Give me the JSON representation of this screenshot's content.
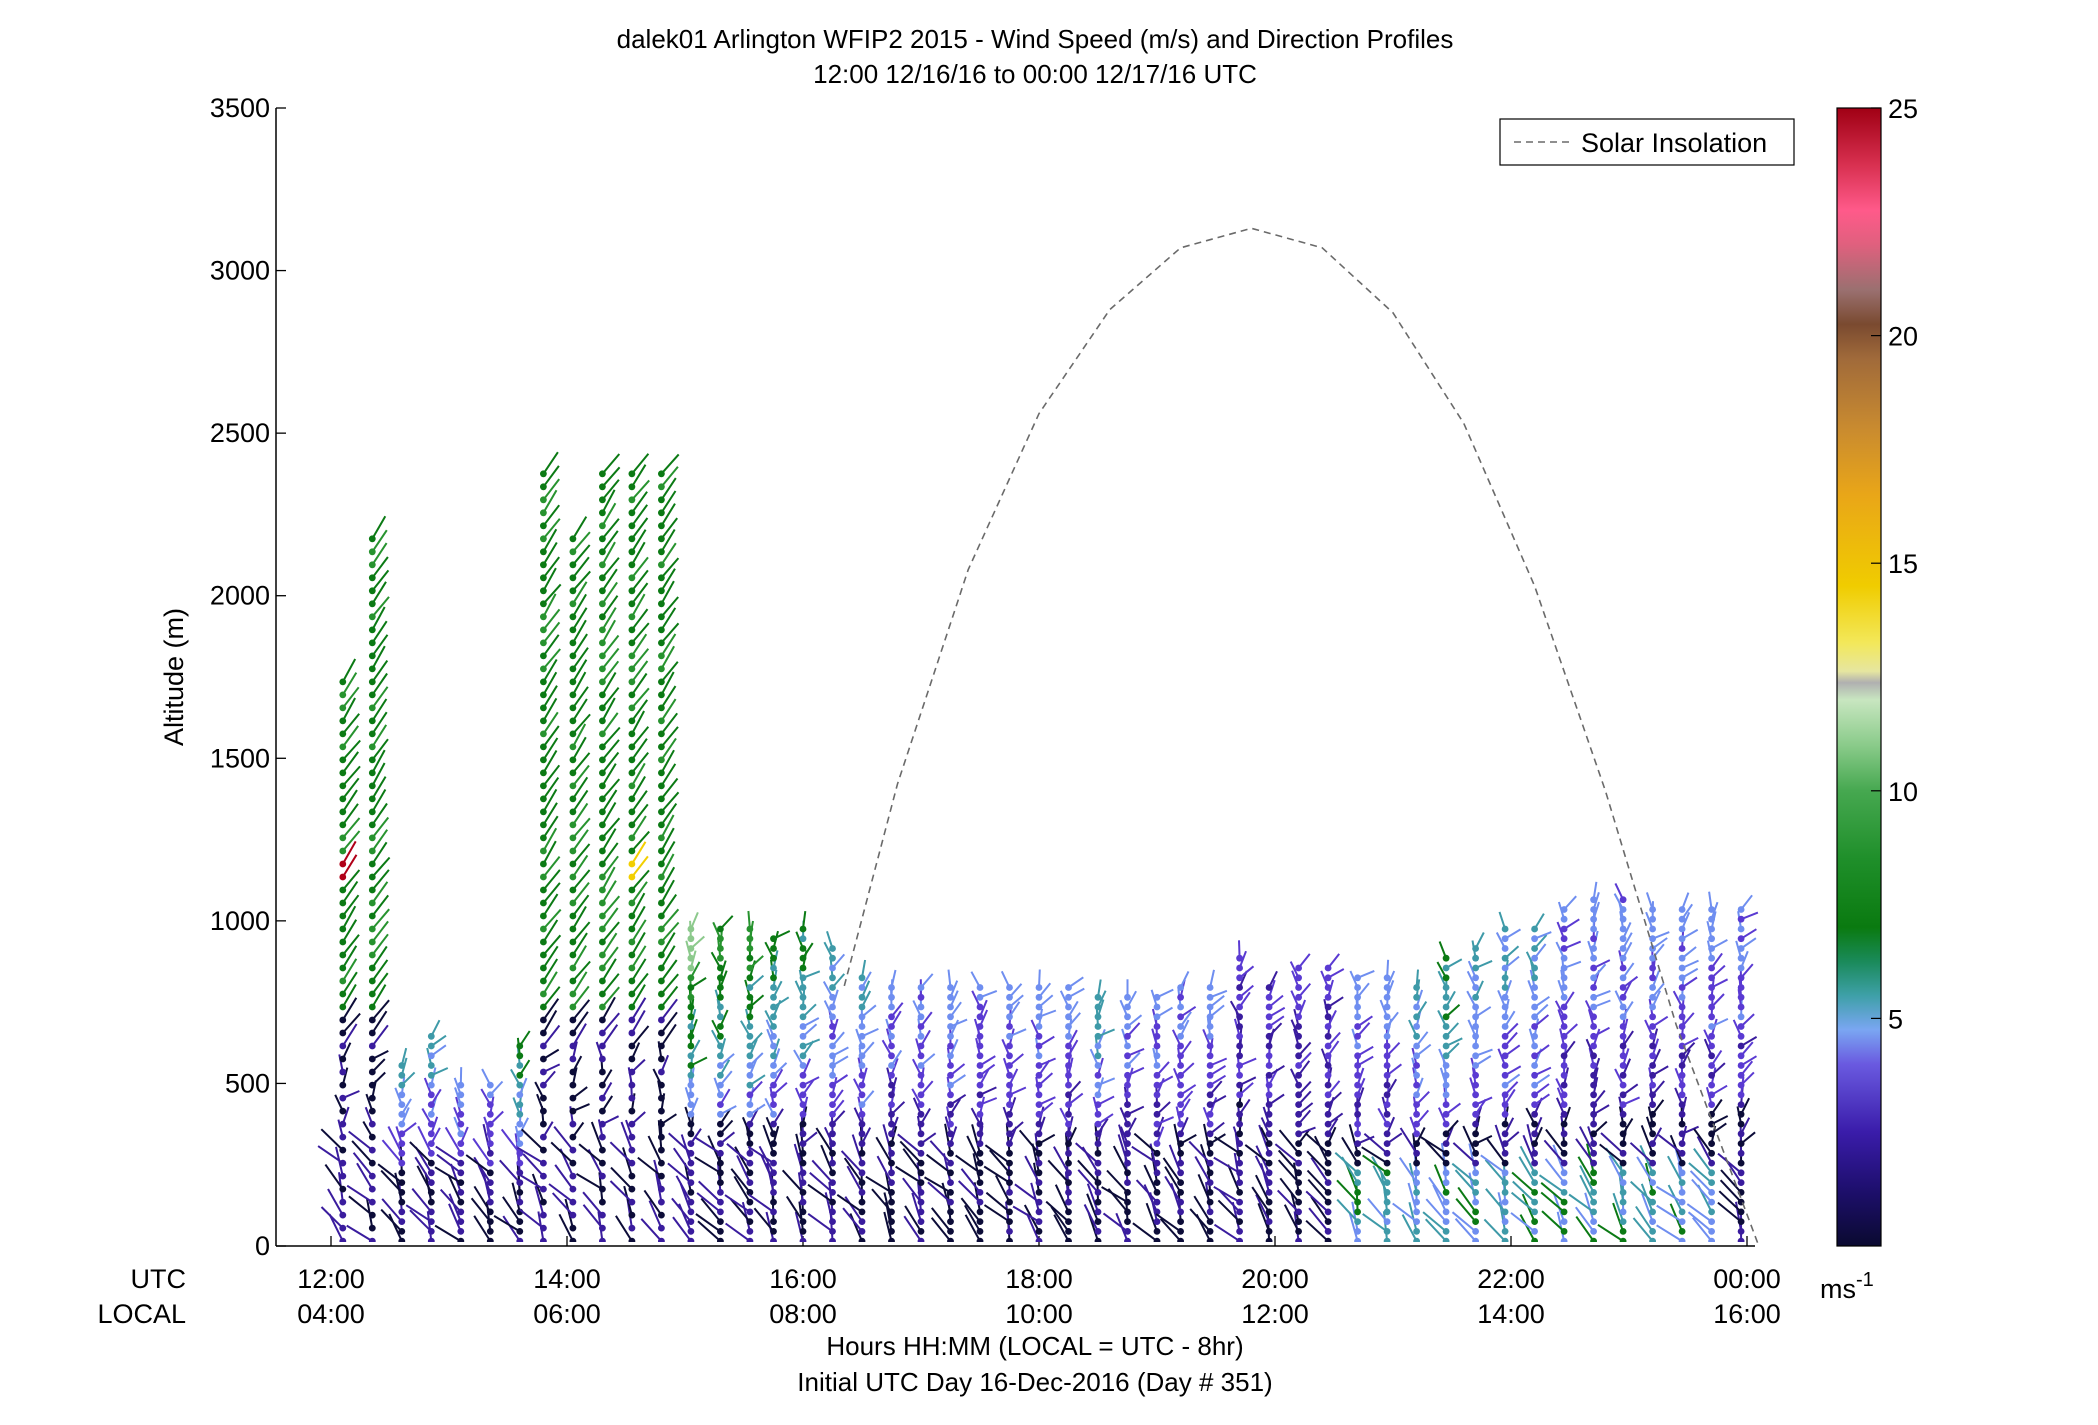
{
  "chart_data": {
    "type": "wind-barb profile",
    "title": "dalek01 Arlington WFIP2 2015 - Wind Speed (m/s) and Direction Profiles",
    "subtitle": "12:00 12/16/16 to 00:00 12/17/16  UTC",
    "ylabel": "Altitude (m)",
    "ylim": [
      0,
      3500
    ],
    "yticks": [
      "0",
      "500",
      "1000",
      "1500",
      "2000",
      "2500",
      "3000",
      "3500"
    ],
    "x_row_labels": {
      "utc": "UTC",
      "local": "LOCAL"
    },
    "x_utc_ticks": [
      "12:00",
      "14:00",
      "16:00",
      "18:00",
      "20:00",
      "22:00",
      "00:00"
    ],
    "x_local_ticks": [
      "04:00",
      "06:00",
      "08:00",
      "10:00",
      "12:00",
      "14:00",
      "16:00"
    ],
    "x_range_hours": [
      11.9,
      24.15
    ],
    "footer_line1": "Hours HH:MM  (LOCAL = UTC - 8hr)",
    "footer_line2": "Initial UTC Day 16-Dec-2016 (Day # 351)",
    "legend": {
      "label": "Solar Insolation",
      "location": "top-right"
    },
    "solar_insolation": {
      "x": [
        16.35,
        16.8,
        17.4,
        18.0,
        18.6,
        19.2,
        19.8,
        20.4,
        21.0,
        21.6,
        22.2,
        22.8,
        23.4,
        24.1
      ],
      "y": [
        800,
        1420,
        2080,
        2560,
        2880,
        3070,
        3130,
        3070,
        2870,
        2530,
        2030,
        1400,
        680,
        0
      ]
    },
    "colorbar": {
      "ticks": [
        "5",
        "10",
        "15",
        "20",
        "25"
      ],
      "range": [
        0,
        25
      ],
      "unit": "ms",
      "unit_exponent": "-1"
    },
    "speed_colors": [
      "#0c0c38",
      "#3a1c9e",
      "#5a3ad2",
      "#6f8ef0",
      "#3e9aa8",
      "#0b7a14",
      "#27932f",
      "#8cc98c",
      "#f2cf00",
      "#b88a3a",
      "#ff4f80",
      "#b00018"
    ],
    "profiles": [
      {
        "t": 12.1,
        "top": 1760,
        "hi": 11
      },
      {
        "t": 12.35,
        "top": 2200,
        "hi": 11
      },
      {
        "t": 12.6,
        "top": 560,
        "hi": 4
      },
      {
        "t": 12.85,
        "top": 650,
        "hi": 4
      },
      {
        "t": 13.1,
        "top": 500,
        "hi": 3
      },
      {
        "t": 13.35,
        "top": 500,
        "hi": 3
      },
      {
        "t": 13.6,
        "top": 620,
        "hi": 5
      },
      {
        "t": 13.8,
        "top": 2380,
        "hi": 10
      },
      {
        "t": 14.05,
        "top": 2200,
        "hi": 10
      },
      {
        "t": 14.3,
        "top": 2380,
        "hi": 10
      },
      {
        "t": 14.55,
        "top": 2380,
        "hi": 10
      },
      {
        "t": 14.8,
        "top": 2380,
        "hi": 10
      },
      {
        "t": 15.05,
        "top": 980,
        "hi": 7
      },
      {
        "t": 15.3,
        "top": 1000,
        "hi": 6
      },
      {
        "t": 15.55,
        "top": 1000,
        "hi": 6
      },
      {
        "t": 15.75,
        "top": 960,
        "hi": 5
      },
      {
        "t": 16.0,
        "top": 980,
        "hi": 5
      },
      {
        "t": 16.25,
        "top": 940,
        "hi": 4
      },
      {
        "t": 16.5,
        "top": 840,
        "hi": 4
      },
      {
        "t": 16.75,
        "top": 820,
        "hi": 3
      },
      {
        "t": 17.0,
        "top": 820,
        "hi": 3
      },
      {
        "t": 17.25,
        "top": 800,
        "hi": 3
      },
      {
        "t": 17.5,
        "top": 820,
        "hi": 3
      },
      {
        "t": 17.75,
        "top": 800,
        "hi": 3
      },
      {
        "t": 18.0,
        "top": 820,
        "hi": 3
      },
      {
        "t": 18.25,
        "top": 800,
        "hi": 3
      },
      {
        "t": 18.5,
        "top": 780,
        "hi": 4
      },
      {
        "t": 18.75,
        "top": 780,
        "hi": 3
      },
      {
        "t": 19.0,
        "top": 780,
        "hi": 3
      },
      {
        "t": 19.2,
        "top": 800,
        "hi": 3
      },
      {
        "t": 19.45,
        "top": 800,
        "hi": 3
      },
      {
        "t": 19.7,
        "top": 900,
        "hi": 2
      },
      {
        "t": 19.95,
        "top": 800,
        "hi": 2
      },
      {
        "t": 20.2,
        "top": 860,
        "hi": 2
      },
      {
        "t": 20.45,
        "top": 860,
        "hi": 2
      },
      {
        "t": 20.7,
        "top": 840,
        "hi": 3
      },
      {
        "t": 20.95,
        "top": 840,
        "hi": 3
      },
      {
        "t": 21.2,
        "top": 820,
        "hi": 4
      },
      {
        "t": 21.45,
        "top": 900,
        "hi": 5
      },
      {
        "t": 21.7,
        "top": 940,
        "hi": 4
      },
      {
        "t": 21.95,
        "top": 980,
        "hi": 4
      },
      {
        "t": 22.2,
        "top": 1000,
        "hi": 4
      },
      {
        "t": 22.45,
        "top": 1060,
        "hi": 3
      },
      {
        "t": 22.7,
        "top": 1080,
        "hi": 3
      },
      {
        "t": 22.95,
        "top": 1080,
        "hi": 3
      },
      {
        "t": 23.2,
        "top": 1060,
        "hi": 3
      },
      {
        "t": 23.45,
        "top": 1060,
        "hi": 3
      },
      {
        "t": 23.7,
        "top": 1060,
        "hi": 3
      },
      {
        "t": 23.95,
        "top": 1060,
        "hi": 3
      }
    ]
  }
}
